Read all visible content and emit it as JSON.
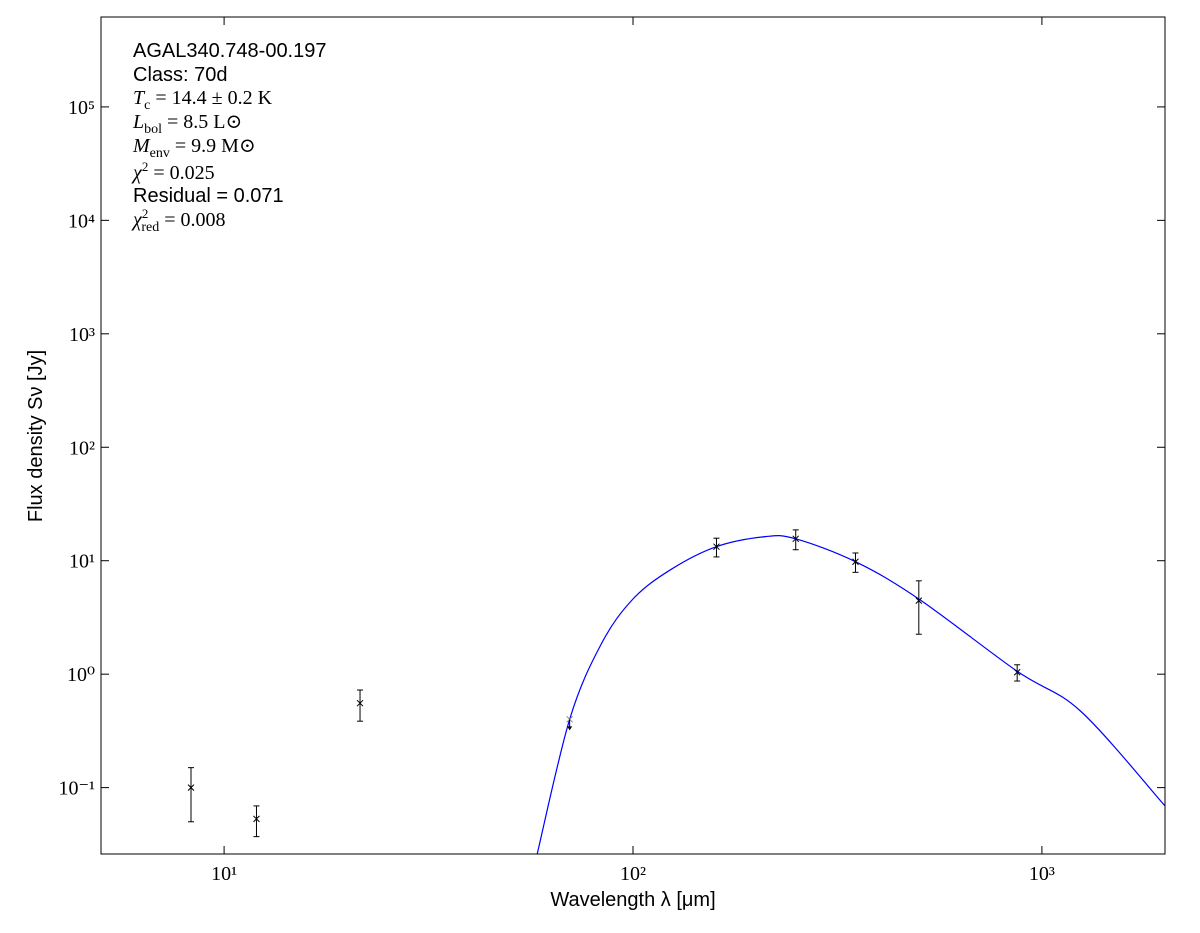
{
  "chart_data": {
    "type": "sed",
    "xlabel": "Wavelength λ [μm]",
    "ylabel": "Flux density Sν [Jy]",
    "xlog": true,
    "ylog": true,
    "xlim": [
      5,
      2000
    ],
    "ylim": [
      0.026,
      620000
    ],
    "xticks": [
      {
        "value": 10,
        "label": "10¹"
      },
      {
        "value": 100,
        "label": "10²"
      },
      {
        "value": 1000,
        "label": "10³"
      }
    ],
    "yticks": [
      {
        "value": 0.1,
        "label": "10⁻¹"
      },
      {
        "value": 1,
        "label": "10⁰"
      },
      {
        "value": 10,
        "label": "10¹"
      },
      {
        "value": 100,
        "label": "10²"
      },
      {
        "value": 1000,
        "label": "10³"
      },
      {
        "value": 10000,
        "label": "10⁴"
      },
      {
        "value": 100000,
        "label": "10⁵"
      }
    ],
    "annotations": [
      {
        "text": "AGAL340.748-00.197"
      },
      {
        "text": "Class: 70d"
      },
      {
        "sym": "T",
        "sub": "c",
        "rest": " = 14.4 ± 0.2 K"
      },
      {
        "sym": "L",
        "sub": "bol",
        "rest": " = 8.5 L⊙"
      },
      {
        "sym": "M",
        "sub": "env",
        "rest": " = 9.9 M⊙"
      },
      {
        "sym": "χ",
        "sup": "2",
        "rest": " = 0.025"
      },
      {
        "text": "Residual = 0.071"
      },
      {
        "sym": "χ",
        "sup": "2",
        "sub": "red",
        "rest": " = 0.008"
      }
    ],
    "points": {
      "color": "#000000",
      "x": [
        8.3,
        12,
        21.5,
        160,
        250,
        350,
        500,
        870
      ],
      "values": [
        0.1,
        0.053,
        0.555,
        13.3,
        15.6,
        9.8,
        4.45,
        1.04
      ],
      "errors": [
        0.05,
        0.016,
        0.17,
        2.5,
        3.1,
        1.9,
        2.2,
        0.17
      ]
    },
    "upper_limits": {
      "color": "#888888",
      "x": [
        70
      ],
      "values": [
        0.4
      ]
    },
    "model": {
      "color": "#0000ff",
      "x": [
        58.3,
        70,
        83.6,
        100,
        124,
        160,
        211,
        250,
        350,
        500,
        870,
        1245,
        2000
      ],
      "values": [
        0.026,
        0.4,
        1.84,
        4.6,
        8.4,
        13.3,
        16.3,
        15.6,
        9.8,
        4.6,
        1.06,
        0.47,
        0.069
      ]
    }
  }
}
